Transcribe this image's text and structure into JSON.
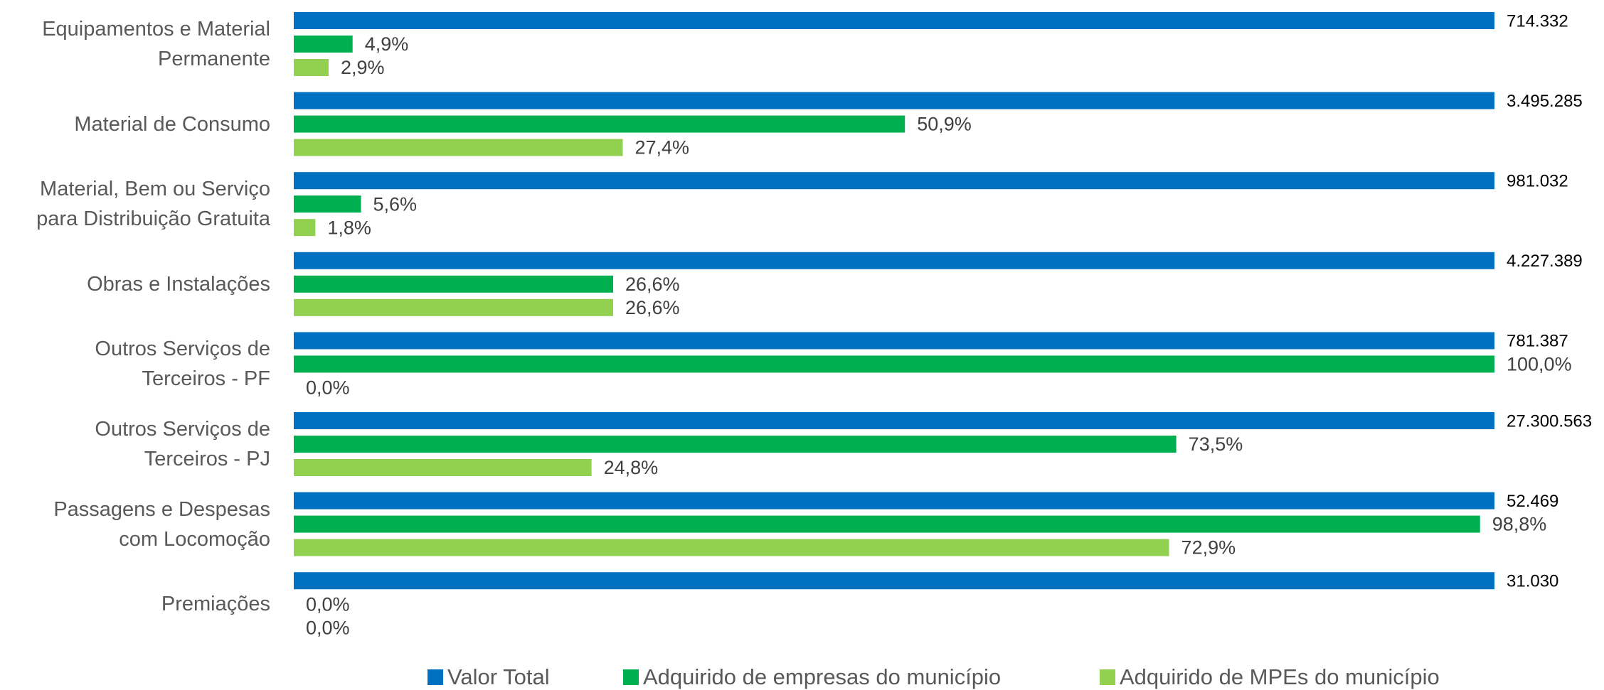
{
  "chart_data": {
    "type": "bar",
    "orientation": "horizontal",
    "categories": [
      "Equipamentos e Material\nPermanente",
      "Material de Consumo",
      "Material, Bem ou Serviço\npara Distribuição Gratuita",
      "Obras e Instalações",
      "Outros Serviços de\nTerceiros - PF",
      "Outros Serviços de\nTerceiros - PJ",
      "Passagens e Despesas\ncom Locomoção",
      "Premiações"
    ],
    "xlim": [
      0,
      100
    ],
    "series": [
      {
        "name": "Valor Total",
        "color": "#0070c0",
        "axis": "total",
        "values": [
          714332,
          3495285,
          981032,
          4227389,
          781387,
          27300563,
          52469,
          31030
        ],
        "value_labels": [
          "714.332",
          "3.495.285",
          "981.032",
          "4.227.389",
          "781.387",
          "27.300.563",
          "52.469",
          "31.030"
        ]
      },
      {
        "name": "Adquirido de empresas do município",
        "color": "#00b050",
        "values": [
          4.9,
          50.9,
          5.6,
          26.6,
          100.0,
          73.5,
          98.8,
          0.0
        ],
        "value_labels": [
          "4,9%",
          "50,9%",
          "5,6%",
          "26,6%",
          "100,0%",
          "73,5%",
          "98,8%",
          "0,0%"
        ]
      },
      {
        "name": "Adquirido de MPEs do município",
        "color": "#92d050",
        "values": [
          2.9,
          27.4,
          1.8,
          26.6,
          0.0,
          24.8,
          72.9,
          0.0
        ],
        "value_labels": [
          "2,9%",
          "27,4%",
          "1,8%",
          "26,6%",
          "0,0%",
          "24,8%",
          "72,9%",
          "0,0%"
        ]
      }
    ],
    "legend": "bottom"
  }
}
